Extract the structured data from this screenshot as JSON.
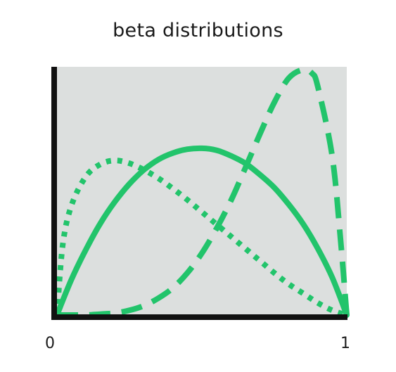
{
  "chart_data": {
    "type": "line",
    "title": "beta distributions",
    "xlabel": "",
    "ylabel": "",
    "xlim": [
      0,
      1
    ],
    "ylim": [
      0,
      2.65
    ],
    "x_ticks": [
      "0",
      "1"
    ],
    "grid": false,
    "legend": "none",
    "colors": {
      "series": "#22c46b",
      "plot_background": "#dcdfde",
      "axis": "#111111",
      "text": "#1a1a1a"
    },
    "series": [
      {
        "style": "solid",
        "x": [
          0,
          0.05,
          0.1,
          0.15,
          0.2,
          0.25,
          0.3,
          0.35,
          0.4,
          0.45,
          0.5,
          0.55,
          0.6,
          0.65,
          0.7,
          0.75,
          0.8,
          0.85,
          0.9,
          0.95,
          1
        ],
        "y": [
          0,
          0.38,
          0.7,
          0.98,
          1.21,
          1.4,
          1.55,
          1.66,
          1.73,
          1.77,
          1.78,
          1.76,
          1.7,
          1.62,
          1.5,
          1.36,
          1.18,
          0.97,
          0.71,
          0.4,
          0
        ]
      },
      {
        "style": "dashed",
        "x": [
          0,
          0.05,
          0.1,
          0.15,
          0.2,
          0.25,
          0.3,
          0.35,
          0.4,
          0.45,
          0.5,
          0.55,
          0.6,
          0.65,
          0.7,
          0.75,
          0.8,
          0.85,
          0.88,
          0.9,
          0.95,
          0.98,
          1
        ],
        "y": [
          0,
          0.0,
          0.0,
          0.01,
          0.02,
          0.05,
          0.1,
          0.18,
          0.29,
          0.45,
          0.66,
          0.92,
          1.22,
          1.57,
          1.93,
          2.27,
          2.53,
          2.62,
          2.58,
          2.44,
          1.69,
          0.75,
          0
        ]
      },
      {
        "style": "dotted",
        "x": [
          0,
          0.02,
          0.05,
          0.1,
          0.15,
          0.2,
          0.25,
          0.3,
          0.35,
          0.4,
          0.45,
          0.5,
          0.55,
          0.6,
          0.65,
          0.7,
          0.75,
          0.8,
          0.85,
          0.9,
          0.95,
          1
        ],
        "y": [
          0,
          0.75,
          1.17,
          1.48,
          1.61,
          1.65,
          1.62,
          1.55,
          1.46,
          1.35,
          1.23,
          1.1,
          0.97,
          0.84,
          0.71,
          0.58,
          0.45,
          0.33,
          0.23,
          0.13,
          0.05,
          0
        ]
      }
    ]
  }
}
